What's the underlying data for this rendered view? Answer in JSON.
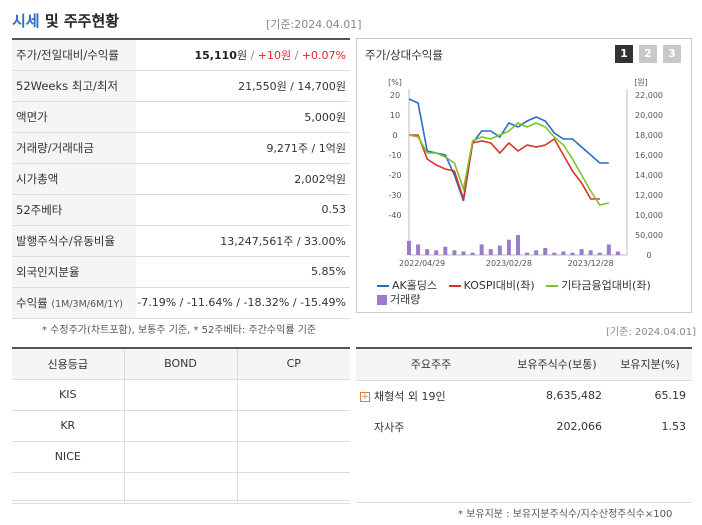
{
  "header": {
    "title_main": "시세",
    "title_rest": " 및 주주현황",
    "date": "[기준:2024.04.01]"
  },
  "quote": {
    "rows": [
      {
        "key": "주가/전일대비/수익률",
        "price": "15,110",
        "unit": "원",
        "sep1": " / ",
        "change": "+10원",
        "sep2": " / ",
        "rate": "+0.07%"
      },
      {
        "key": "52Weeks 최고/최저",
        "value": "21,550원 / 14,700원"
      },
      {
        "key": "액면가",
        "value": "5,000원"
      },
      {
        "key": "거래량/거래대금",
        "value": "9,271주 / 1억원"
      },
      {
        "key": "시가총액",
        "value": "2,002억원"
      },
      {
        "key": "52주베타",
        "value": "0.53"
      },
      {
        "key": "발행주식수/유동비율",
        "value": "13,247,561주 / 33.00%"
      },
      {
        "key": "외국인지분율",
        "value": "5.85%"
      },
      {
        "key": "수익률",
        "key_sub": "(1M/3M/6M/1Y)",
        "value": "-7.19% / -11.64% / -18.32% / -15.49%"
      }
    ],
    "note": "* 수정주가(차트포함), 보통주 기준, * 52주베타: 주간수익률 기준"
  },
  "chart_panel": {
    "title": "주가/상대수익률",
    "tabs": [
      "1",
      "2",
      "3"
    ],
    "legend": [
      "AK홀딩스",
      "KOSPI대비(좌)",
      "기타금융업대비(좌)",
      "거래량"
    ]
  },
  "chart_data": {
    "type": "line",
    "left_unit": "[%]",
    "right_unit": "[원]",
    "left_ticks": [
      "20",
      "10",
      "0",
      "-10",
      "-20",
      "-30",
      "-40"
    ],
    "right_ticks": [
      "22,000",
      "20,000",
      "18,000",
      "16,000",
      "14,000",
      "12,000",
      "10,000"
    ],
    "volume_ticks": [
      "50,000",
      "0"
    ],
    "x_labels": [
      "2022/04/29",
      "2023/02/28",
      "2023/12/28"
    ],
    "ylim_left": [
      -40,
      20
    ],
    "ylim_right": [
      10000,
      22000
    ],
    "x": [
      0,
      1,
      2,
      3,
      4,
      5,
      6,
      7,
      8,
      9,
      10,
      11,
      12,
      13,
      14,
      15,
      16,
      17,
      18,
      19,
      20,
      21,
      22,
      23,
      24
    ],
    "series": [
      {
        "name": "AK홀딩스",
        "color": "#2a6cc7",
        "axis": "left",
        "values": [
          18,
          16,
          -8,
          -9,
          -10,
          -20,
          -33,
          -4,
          2,
          2,
          -1,
          6,
          4,
          7,
          9,
          7,
          1,
          -2,
          -2,
          -6,
          -10,
          -14,
          -14,
          null,
          null
        ]
      },
      {
        "name": "KOSPI대비(좌)",
        "color": "#d9342b",
        "axis": "left",
        "values": [
          0,
          0,
          -12,
          -15,
          -17,
          -18,
          -32,
          -4,
          -3,
          -4,
          -9,
          -4,
          -8,
          -5,
          -6,
          -5,
          -2,
          -10,
          -18,
          -24,
          -32,
          -32,
          null,
          null,
          null
        ]
      },
      {
        "name": "기타금융업대비(좌)",
        "color": "#7cc423",
        "axis": "left",
        "values": [
          0,
          -1,
          -9,
          -9,
          -11,
          -14,
          -27,
          -3,
          -1,
          -2,
          0,
          2,
          6,
          4,
          6,
          4,
          -1,
          -5,
          -12,
          -20,
          -28,
          -35,
          -34,
          null,
          null
        ]
      }
    ],
    "volume": {
      "name": "거래량",
      "color": "#9b7cc9",
      "values": [
        12,
        9,
        5,
        4,
        7,
        4,
        3,
        2,
        9,
        5,
        8,
        13,
        17,
        2,
        4,
        6,
        2,
        3,
        2,
        5,
        4,
        2,
        9,
        3,
        0
      ]
    }
  },
  "date2": "[기준: 2024.04.01]",
  "credit": {
    "headers": [
      "신용등급",
      "BOND",
      "CP"
    ],
    "rows": [
      [
        "KIS",
        "",
        ""
      ],
      [
        "KR",
        "",
        ""
      ],
      [
        "NICE",
        "",
        ""
      ],
      [
        "",
        "",
        ""
      ]
    ]
  },
  "holders": {
    "headers": [
      "주요주주",
      "보유주식수(보통)",
      "보유지분(%)"
    ],
    "rows": [
      {
        "name": "채형석 외 19인",
        "shares": "8,635,482",
        "pct": "65.19",
        "expand": "+"
      },
      {
        "name": "자사주",
        "shares": "202,066",
        "pct": "1.53"
      }
    ],
    "note": "* 보유지분 : 보유지분주식수/지수산정주식수×100"
  },
  "colors": {
    "accent": "#2a6cc7",
    "up": "#e0262b",
    "down": "#2a6cc7"
  }
}
